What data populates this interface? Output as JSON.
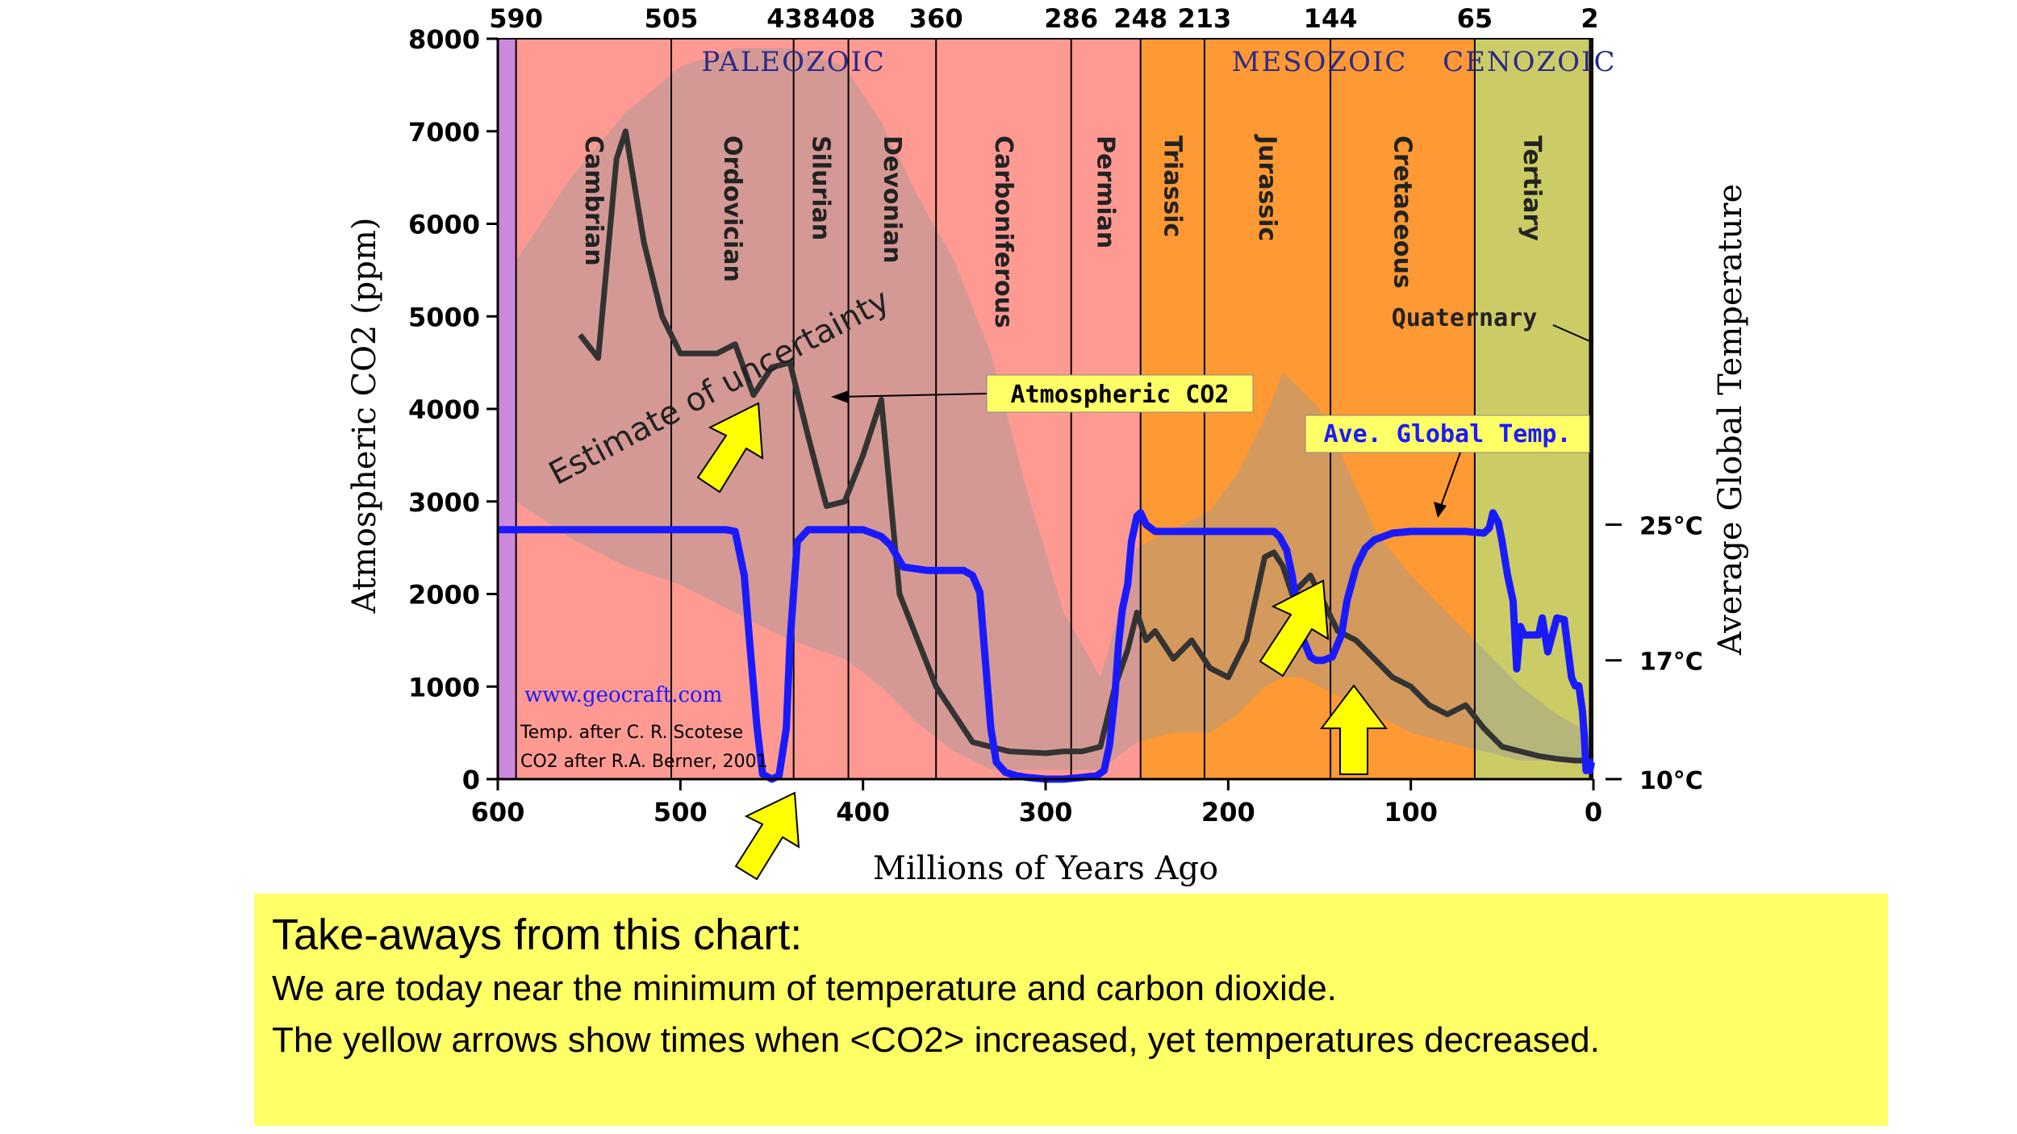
{
  "chart_data": {
    "type": "line",
    "xlabel": "Millions of Years Ago",
    "ylabel": "Atmospheric CO2 (ppm)",
    "y2label": "Average Global Temperature",
    "xlim": [
      600,
      0
    ],
    "ylim": [
      0,
      8000
    ],
    "x_ticks": [
      600,
      500,
      400,
      300,
      200,
      100,
      0
    ],
    "y_ticks": [
      0,
      1000,
      2000,
      3000,
      4000,
      5000,
      6000,
      7000,
      8000
    ],
    "y2_ticks": [
      {
        "label": "25°C",
        "temp": 25
      },
      {
        "label": "17°C",
        "temp": 17
      },
      {
        "label": "10°C",
        "temp": 10
      }
    ],
    "top_ticks": [
      590,
      505,
      438,
      408,
      360,
      286,
      248,
      213,
      144,
      65,
      2
    ],
    "eras": [
      {
        "name": "PALEOZOIC",
        "x": 438
      },
      {
        "name": "MESOZOIC",
        "x": 150
      },
      {
        "name": "CENOZOIC",
        "x": 35
      }
    ],
    "periods": [
      {
        "name": "Cambrian",
        "start": 590,
        "end": 505,
        "color": "#ff9a93"
      },
      {
        "name": "Ordovician",
        "start": 505,
        "end": 438,
        "color": "#ff9a93"
      },
      {
        "name": "Silurian",
        "start": 438,
        "end": 408,
        "color": "#ff9a93"
      },
      {
        "name": "Devonian",
        "start": 408,
        "end": 360,
        "color": "#ff9a93"
      },
      {
        "name": "Carboniferous",
        "start": 360,
        "end": 286,
        "color": "#ff9a93"
      },
      {
        "name": "Permian",
        "start": 286,
        "end": 248,
        "color": "#ff9a93"
      },
      {
        "name": "Triassic",
        "start": 248,
        "end": 213,
        "color": "#ff9933"
      },
      {
        "name": "Jurassic",
        "start": 213,
        "end": 144,
        "color": "#ff9933"
      },
      {
        "name": "Cretaceous",
        "start": 144,
        "end": 65,
        "color": "#ff9933"
      },
      {
        "name": "Tertiary",
        "start": 65,
        "end": 2,
        "color": "#cccc66"
      }
    ],
    "precambrian_color": "#cc88dd",
    "quaternary_label": "Quaternary",
    "series": [
      {
        "name": "Atmospheric CO2",
        "color": "#333333",
        "x": [
          555,
          545,
          535,
          530,
          520,
          510,
          500,
          490,
          480,
          470,
          460,
          450,
          440,
          430,
          420,
          410,
          400,
          390,
          380,
          370,
          360,
          340,
          320,
          300,
          290,
          280,
          270,
          262,
          255,
          250,
          245,
          240,
          230,
          220,
          210,
          200,
          190,
          180,
          175,
          170,
          165,
          160,
          155,
          150,
          140,
          130,
          120,
          110,
          100,
          90,
          80,
          70,
          60,
          50,
          40,
          30,
          20,
          10,
          2
        ],
        "values": [
          4800,
          4550,
          6700,
          7000,
          5800,
          5000,
          4600,
          4600,
          4600,
          4700,
          4150,
          4450,
          4500,
          3700,
          2950,
          3000,
          3500,
          4100,
          2000,
          1500,
          1000,
          400,
          300,
          280,
          300,
          300,
          350,
          1000,
          1400,
          1800,
          1500,
          1600,
          1300,
          1500,
          1200,
          1100,
          1500,
          2400,
          2450,
          2300,
          2000,
          2100,
          2200,
          2000,
          1600,
          1500,
          1300,
          1100,
          1000,
          800,
          700,
          800,
          550,
          350,
          300,
          250,
          220,
          200,
          200
        ]
      },
      {
        "name": "Ave. Global Temp.",
        "color": "#1a1aff",
        "x": [
          600,
          590,
          560,
          530,
          500,
          475,
          470,
          465,
          462,
          458,
          455,
          450,
          446,
          442,
          440,
          436,
          430,
          420,
          400,
          390,
          385,
          378,
          365,
          355,
          345,
          340,
          336,
          333,
          330,
          327,
          322,
          316,
          310,
          300,
          290,
          280,
          272,
          268,
          265,
          262,
          260,
          258,
          255,
          253,
          250,
          248,
          245,
          240,
          235,
          220,
          200,
          175,
          172,
          168,
          165,
          160,
          155,
          152,
          148,
          143,
          138,
          135,
          130,
          125,
          120,
          115,
          110,
          100,
          80,
          70,
          60,
          57,
          55,
          52,
          50,
          47,
          44,
          42,
          40,
          38,
          34,
          30,
          28,
          25,
          20,
          16,
          12,
          10,
          8,
          6,
          5,
          4,
          3,
          2,
          1,
          0
        ],
        "values": [
          24.7,
          24.7,
          24.7,
          24.7,
          24.7,
          24.7,
          24.6,
          22,
          18,
          13,
          10.3,
          10,
          10.2,
          13,
          18,
          24,
          24.7,
          24.7,
          24.7,
          24.3,
          23.8,
          22.5,
          22.3,
          22.3,
          22.3,
          22,
          21,
          17,
          13,
          11,
          10.4,
          10.2,
          10.1,
          10,
          10,
          10.1,
          10.2,
          10.5,
          12,
          15,
          18,
          20,
          21.5,
          24,
          25.5,
          25.7,
          25,
          24.6,
          24.6,
          24.6,
          24.6,
          24.6,
          24.3,
          23.5,
          22,
          18.5,
          17.2,
          17,
          17,
          17.2,
          18.5,
          20.5,
          22.5,
          23.6,
          24.1,
          24.3,
          24.5,
          24.6,
          24.6,
          24.6,
          24.5,
          24.8,
          25.7,
          25.1,
          24,
          22,
          20.5,
          16.5,
          19,
          18.5,
          18.5,
          18.5,
          19.5,
          17.5,
          19.5,
          19.4,
          16,
          15.5,
          15.5,
          14,
          12.5,
          10.5,
          10.7,
          10.5,
          11,
          11
        ]
      }
    ],
    "temp_axis_map": {
      "temp_a": 25,
      "co2_a": 2750,
      "temp_b": 10,
      "co2_b": 0
    },
    "uncertainty_band": {
      "color": "#999999",
      "x": [
        590,
        560,
        530,
        500,
        470,
        440,
        410,
        390,
        370,
        350,
        330,
        310,
        290,
        270,
        250,
        230,
        210,
        195,
        180,
        170,
        160,
        150,
        140,
        120,
        100,
        80,
        60,
        40,
        20,
        2
      ],
      "upper": [
        5600,
        6500,
        7200,
        7700,
        7900,
        7900,
        7700,
        7100,
        6300,
        5600,
        4600,
        3100,
        1800,
        1100,
        2500,
        2700,
        2900,
        3300,
        3900,
        4400,
        4200,
        4000,
        3600,
        2700,
        2200,
        1800,
        1400,
        1000,
        700,
        500
      ],
      "lower": [
        3000,
        2600,
        2300,
        2100,
        1800,
        1500,
        1300,
        1000,
        600,
        300,
        100,
        100,
        100,
        100,
        400,
        500,
        500,
        700,
        1000,
        1100,
        1100,
        1000,
        900,
        700,
        500,
        400,
        300,
        200,
        200,
        150
      ]
    },
    "annotations": {
      "uncertainty": "Estimate of uncertainty",
      "co2_label": "Atmospheric CO2",
      "temp_label": "Ave. Global Temp.",
      "website": "www.geocraft.com",
      "credit1": "Temp. after C. R. Scotese",
      "credit2": "CO2 after R.A. Berner, 2001"
    },
    "highlight_arrows": [
      {
        "x": 480,
        "co2": 3750
      },
      {
        "x": 450,
        "co2": 0
      },
      {
        "x": 160,
        "co2": 1750
      },
      {
        "x": 144,
        "co2": 0
      }
    ],
    "arrow_color": "#ffff00"
  },
  "takeaway": {
    "title": "Take-aways from this chart:",
    "line1": "We are today near the minimum of temperature and carbon dioxide.",
    "line2": "The yellow arrows show times when <CO2> increased, yet temperatures decreased."
  }
}
